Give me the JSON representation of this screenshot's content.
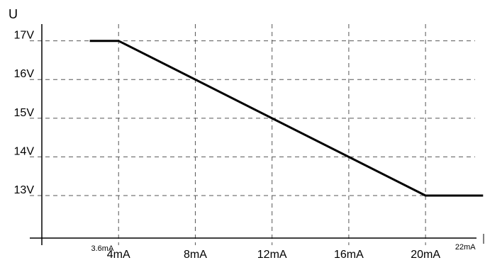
{
  "chart_data": {
    "type": "line",
    "title": "",
    "ylabel": "U",
    "xlabel": "",
    "x_ticks": [
      {
        "value": 4,
        "label": "4mA"
      },
      {
        "value": 8,
        "label": "8mA"
      },
      {
        "value": 12,
        "label": "12mA"
      },
      {
        "value": 16,
        "label": "16mA"
      },
      {
        "value": 20,
        "label": "20mA"
      }
    ],
    "x_small_ticks": [
      {
        "value": 3.6,
        "label": "3.6mA"
      },
      {
        "value": 22,
        "label": "22mA"
      }
    ],
    "y_ticks": [
      {
        "value": 13,
        "label": "13V"
      },
      {
        "value": 14,
        "label": "14V"
      },
      {
        "value": 15,
        "label": "15V"
      },
      {
        "value": 16,
        "label": "16V"
      },
      {
        "value": 17,
        "label": "17V"
      }
    ],
    "xlim": [
      0,
      23.1
    ],
    "ylim": [
      11.9,
      17.8
    ],
    "grid": true,
    "series": [
      {
        "x": [
          2.5,
          3.6,
          4,
          20,
          22,
          23
        ],
        "y": [
          17,
          17,
          17,
          13,
          13,
          13
        ]
      }
    ],
    "colors": {
      "line": "#000000",
      "grid": "#555555",
      "axis": "#000000"
    }
  }
}
